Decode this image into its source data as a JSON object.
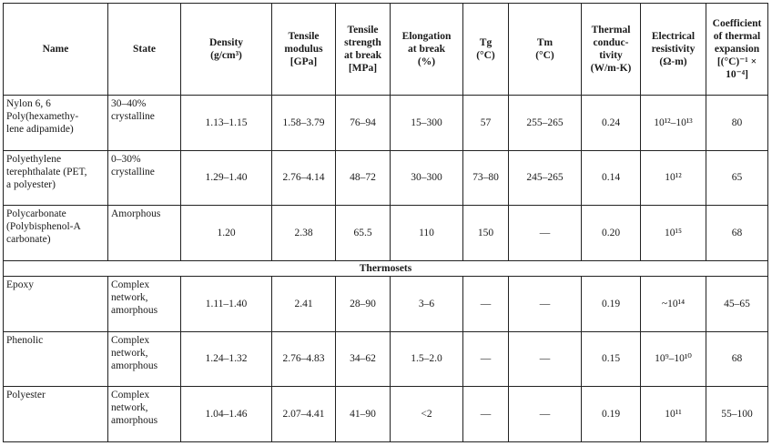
{
  "headers": [
    "Name",
    "State",
    "Density\n(g/cm³)",
    "Tensile\nmodulus\n[GPa]",
    "Tensile\nstrength\nat break\n[MPa]",
    "Elongation\nat break\n(%)",
    "Tg\n(°C)",
    "Tm\n(°C)",
    "Thermal\nconduc-\ntivity\n(W/m-K)",
    "Electrical\nresistivity\n(Ω-m)",
    "Coefficient\nof thermal\nexpansion\n[(°C)⁻¹ ×\n10⁻⁴]"
  ],
  "rows_top": [
    {
      "name": "Nylon 6, 6\nPoly(hexamethy-\nlene adipamide)",
      "state": "30–40%\n   crystalline",
      "cells": [
        "1.13–1.15",
        "1.58–3.79",
        "76–94",
        "15–300",
        "57",
        "255–265",
        "0.24",
        "10¹²–10¹³",
        "80"
      ]
    },
    {
      "name": "Polyethylene\nterephthalate (PET,\na polyester)",
      "state": "0–30%\n   crystalline",
      "cells": [
        "1.29–1.40",
        "2.76–4.14",
        "48–72",
        "30–300",
        "73–80",
        "245–265",
        "0.14",
        "10¹²",
        "65"
      ]
    },
    {
      "name": "Polycarbonate\n(Polybisphenol-A\ncarbonate)",
      "state": "Amorphous",
      "cells": [
        "1.20",
        "2.38",
        "65.5",
        "110",
        "150",
        "—",
        "0.20",
        "10¹⁵",
        "68"
      ]
    }
  ],
  "section_label": "Thermosets",
  "rows_bottom": [
    {
      "name": "Epoxy",
      "state": "Complex\n   network,\n   amorphous",
      "cells": [
        "1.11–1.40",
        "2.41",
        "28–90",
        "3–6",
        "—",
        "—",
        "0.19",
        "~10¹⁴",
        "45–65"
      ]
    },
    {
      "name": "Phenolic",
      "state": "Complex\n   network,\n   amorphous",
      "cells": [
        "1.24–1.32",
        "2.76–4.83",
        "34–62",
        "1.5–2.0",
        "—",
        "—",
        "0.15",
        "10⁹–10¹⁰",
        "68"
      ]
    },
    {
      "name": "Polyester",
      "state": "Complex\n   network,\n   amorphous",
      "cells": [
        "1.04–1.46",
        "2.07–4.41",
        "41–90",
        "<2",
        "—",
        "—",
        "0.19",
        "10¹¹",
        "55–100"
      ]
    }
  ]
}
